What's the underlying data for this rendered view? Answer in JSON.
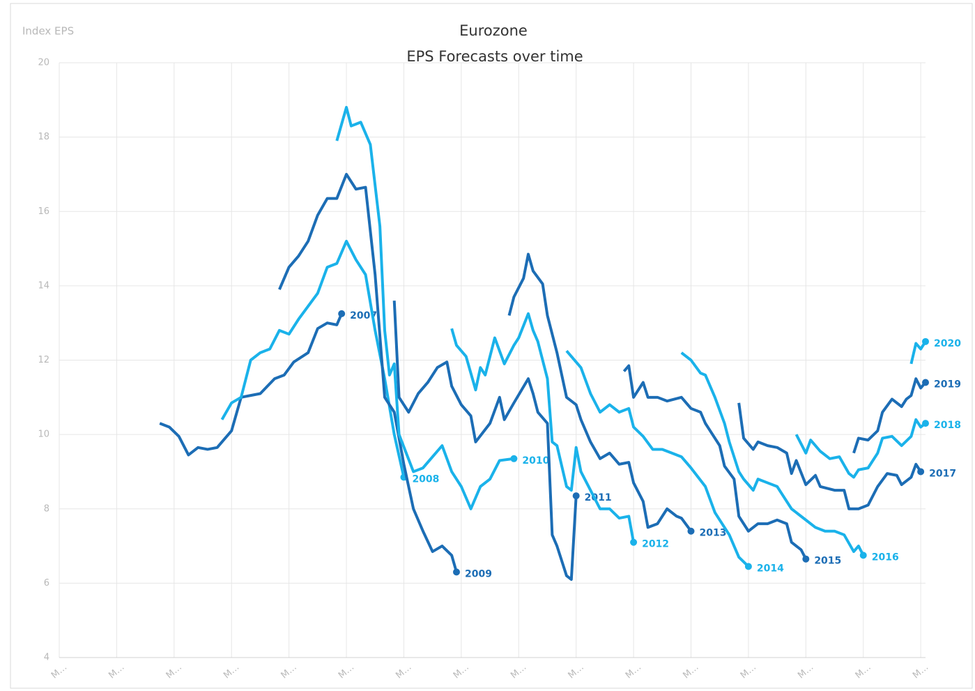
{
  "chart_data": {
    "type": "line",
    "title": "Eurozone",
    "subtitle": "EPS Forecasts over time",
    "y_label": "Index EPS",
    "xlim": [
      0,
      181
    ],
    "ylim": [
      4,
      20
    ],
    "xticks": [
      {
        "value": 0,
        "label": "M…"
      },
      {
        "value": 12,
        "label": "M…"
      },
      {
        "value": 24,
        "label": "M…"
      },
      {
        "value": 36,
        "label": "M…"
      },
      {
        "value": 48,
        "label": "M…"
      },
      {
        "value": 60,
        "label": "M…"
      },
      {
        "value": 72,
        "label": "M…"
      },
      {
        "value": 84,
        "label": "M…"
      },
      {
        "value": 96,
        "label": "M…"
      },
      {
        "value": 108,
        "label": "M…"
      },
      {
        "value": 120,
        "label": "M…"
      },
      {
        "value": 132,
        "label": "M…"
      },
      {
        "value": 144,
        "label": "M…"
      },
      {
        "value": 156,
        "label": "M…"
      },
      {
        "value": 168,
        "label": "M…"
      },
      {
        "value": 180,
        "label": "M…"
      }
    ],
    "yticks": [
      4,
      6,
      8,
      10,
      12,
      14,
      16,
      18,
      20
    ],
    "grid": true,
    "series": [
      {
        "name": "2007",
        "color": "#1c6db5",
        "x": [
          21,
          23,
          25,
          27,
          29,
          31,
          33,
          36,
          38,
          40,
          42,
          45,
          47,
          49,
          52,
          54,
          56,
          58,
          59
        ],
        "values": [
          10.3,
          10.2,
          9.95,
          9.45,
          9.65,
          9.6,
          9.65,
          10.1,
          11.0,
          11.05,
          11.1,
          11.5,
          11.6,
          11.95,
          12.2,
          12.85,
          13.0,
          12.95,
          13.25
        ]
      },
      {
        "name": "2008",
        "color": "#1ab2ea",
        "x": [
          34,
          36,
          38,
          40,
          42,
          44,
          46,
          48,
          50,
          52,
          54,
          56,
          58,
          60,
          62,
          64,
          66,
          68,
          70,
          72
        ],
        "values": [
          10.4,
          10.85,
          11.0,
          12.0,
          12.2,
          12.3,
          12.8,
          12.7,
          13.1,
          13.45,
          13.8,
          14.5,
          14.6,
          15.2,
          14.7,
          14.3,
          12.8,
          11.5,
          10.0,
          8.85
        ]
      },
      {
        "name": "2009",
        "color": "#1c6db5",
        "x": [
          46,
          48,
          50,
          52,
          54,
          56,
          58,
          60,
          62,
          64,
          66,
          68,
          70,
          72,
          74,
          76,
          78,
          80,
          82,
          83
        ],
        "values": [
          13.9,
          14.5,
          14.8,
          15.2,
          15.9,
          16.35,
          16.35,
          17.0,
          16.6,
          16.65,
          14.3,
          11.0,
          10.6,
          9.2,
          8.0,
          7.4,
          6.85,
          7.0,
          6.75,
          6.3
        ]
      },
      {
        "name": "2010",
        "color": "#1ab2ea",
        "x": [
          58,
          60,
          61,
          63,
          65,
          67,
          68,
          69,
          70,
          71,
          74,
          76,
          78,
          80,
          82,
          84,
          86,
          88,
          90,
          92,
          95
        ],
        "values": [
          17.9,
          18.8,
          18.3,
          18.4,
          17.8,
          15.6,
          12.8,
          11.6,
          11.9,
          10.0,
          9.0,
          9.1,
          9.4,
          9.7,
          9.0,
          8.6,
          8.0,
          8.6,
          8.8,
          9.3,
          9.35
        ]
      },
      {
        "name": "2011",
        "color": "#1c6db5",
        "x": [
          70,
          71,
          73,
          75,
          77,
          79,
          81,
          82,
          84,
          86,
          87,
          90,
          92,
          93,
          95,
          98,
          99,
          100,
          102,
          103,
          104,
          106,
          107,
          108
        ],
        "values": [
          13.6,
          11.0,
          10.6,
          11.1,
          11.4,
          11.8,
          11.95,
          11.3,
          10.8,
          10.5,
          9.8,
          10.3,
          11.0,
          10.4,
          10.85,
          11.5,
          11.1,
          10.6,
          10.3,
          7.3,
          7.0,
          6.2,
          6.1,
          8.35
        ]
      },
      {
        "name": "2012",
        "color": "#1ab2ea",
        "x": [
          82,
          83,
          85,
          87,
          88,
          89,
          91,
          93,
          95,
          96,
          98,
          99,
          100,
          102,
          103,
          104,
          106,
          107,
          108,
          109,
          111,
          113,
          115,
          117,
          119,
          120
        ],
        "values": [
          12.85,
          12.4,
          12.1,
          11.2,
          11.8,
          11.6,
          12.6,
          11.9,
          12.4,
          12.6,
          13.25,
          12.8,
          12.5,
          11.5,
          9.8,
          9.7,
          8.6,
          8.5,
          9.65,
          9.0,
          8.5,
          8.0,
          8.0,
          7.75,
          7.8,
          7.1
        ]
      },
      {
        "name": "2013",
        "color": "#1c6db5",
        "x": [
          94,
          95,
          97,
          98,
          99,
          101,
          102,
          104,
          106,
          108,
          109,
          111,
          113,
          115,
          117,
          119,
          120,
          122,
          123,
          125,
          127,
          129,
          130,
          132
        ],
        "values": [
          13.2,
          13.7,
          14.2,
          14.85,
          14.4,
          14.05,
          13.2,
          12.2,
          11.0,
          10.8,
          10.4,
          9.8,
          9.35,
          9.5,
          9.2,
          9.25,
          8.7,
          8.2,
          7.5,
          7.6,
          8.0,
          7.8,
          7.75,
          7.4
        ]
      },
      {
        "name": "2014",
        "color": "#1ab2ea",
        "x": [
          106,
          107,
          109,
          111,
          113,
          115,
          117,
          119,
          120,
          122,
          124,
          126,
          128,
          130,
          132,
          135,
          137,
          139,
          140,
          142,
          144
        ],
        "values": [
          12.25,
          12.1,
          11.8,
          11.1,
          10.6,
          10.8,
          10.6,
          10.7,
          10.2,
          9.95,
          9.6,
          9.6,
          9.5,
          9.4,
          9.1,
          8.6,
          7.9,
          7.5,
          7.3,
          6.7,
          6.45
        ]
      },
      {
        "name": "2015",
        "color": "#1c6db5",
        "x": [
          118,
          119,
          120,
          122,
          123,
          125,
          127,
          130,
          132,
          134,
          135,
          138,
          139,
          141,
          142,
          144,
          146,
          148,
          150,
          152,
          153,
          155,
          156
        ],
        "values": [
          11.7,
          11.85,
          11.0,
          11.4,
          11.0,
          11.0,
          10.9,
          11.0,
          10.7,
          10.6,
          10.3,
          9.7,
          9.15,
          8.8,
          7.8,
          7.4,
          7.6,
          7.6,
          7.7,
          7.6,
          7.1,
          6.9,
          6.65
        ]
      },
      {
        "name": "2016",
        "color": "#1ab2ea",
        "x": [
          130,
          132,
          134,
          135,
          137,
          139,
          140,
          142,
          143,
          145,
          146,
          148,
          150,
          151,
          153,
          154,
          156,
          158,
          160,
          162,
          164,
          166,
          167,
          168
        ],
        "values": [
          12.2,
          12.0,
          11.65,
          11.6,
          11.0,
          10.3,
          9.8,
          9.0,
          8.8,
          8.5,
          8.8,
          8.7,
          8.6,
          8.4,
          8.0,
          7.9,
          7.7,
          7.5,
          7.4,
          7.4,
          7.3,
          6.85,
          7.0,
          6.75
        ]
      },
      {
        "name": "2017",
        "color": "#1c6db5",
        "x": [
          142,
          143,
          145,
          146,
          148,
          150,
          152,
          153,
          154,
          156,
          158,
          159,
          162,
          164,
          165,
          167,
          169,
          171,
          173,
          175,
          176,
          178,
          179,
          180
        ],
        "values": [
          10.85,
          9.9,
          9.6,
          9.8,
          9.7,
          9.65,
          9.5,
          8.95,
          9.3,
          8.65,
          8.9,
          8.6,
          8.5,
          8.5,
          8.0,
          8.0,
          8.1,
          8.6,
          8.95,
          8.9,
          8.65,
          8.85,
          9.2,
          9.0
        ]
      },
      {
        "name": "2018",
        "color": "#1ab2ea",
        "x": [
          154,
          156,
          157,
          159,
          161,
          163,
          165,
          166,
          167,
          169,
          171,
          172,
          174,
          176,
          178,
          179,
          180,
          181
        ],
        "values": [
          10.0,
          9.5,
          9.85,
          9.55,
          9.35,
          9.4,
          8.95,
          8.85,
          9.05,
          9.1,
          9.5,
          9.9,
          9.95,
          9.7,
          9.95,
          10.4,
          10.2,
          10.3
        ]
      },
      {
        "name": "2019",
        "color": "#1c6db5",
        "x": [
          166,
          167,
          169,
          171,
          172,
          174,
          176,
          177,
          178,
          179,
          180,
          181
        ],
        "values": [
          9.5,
          9.9,
          9.85,
          10.1,
          10.6,
          10.95,
          10.75,
          10.95,
          11.05,
          11.5,
          11.25,
          11.4
        ]
      },
      {
        "name": "2020",
        "color": "#1ab2ea",
        "x": [
          178,
          179,
          180,
          181
        ],
        "values": [
          11.9,
          12.45,
          12.3,
          12.5
        ]
      }
    ]
  }
}
